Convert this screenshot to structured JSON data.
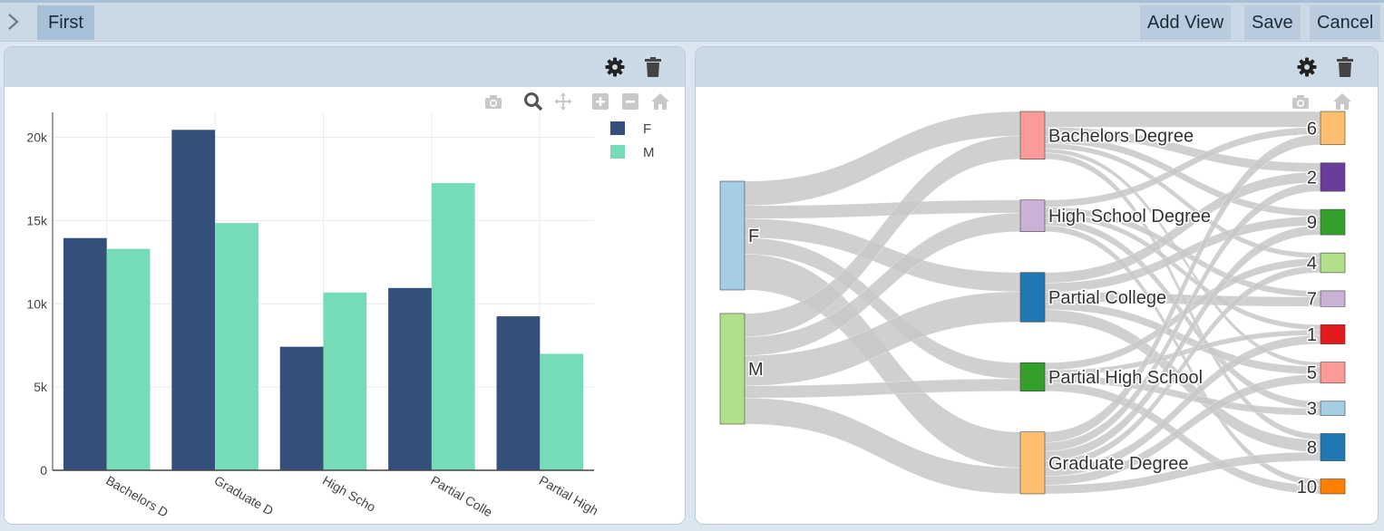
{
  "toolbar": {
    "tab_first": "First",
    "add_view": "Add View",
    "save": "Save",
    "cancel": "Cancel",
    "expand_icon": "chevron-right-icon"
  },
  "panels": {
    "icons": [
      "gear-icon",
      "trash-icon"
    ],
    "modebar_left": [
      "camera-icon",
      "zoom-icon",
      "pan-icon",
      "zoom-in-icon",
      "zoom-out-icon",
      "home-icon"
    ],
    "modebar_right": [
      "camera-icon",
      "home-icon"
    ]
  },
  "colors": {
    "F": "#34507a",
    "M": "#76dcb7",
    "link": "#c8c8c8"
  },
  "chart_data": [
    {
      "type": "bar",
      "categories": [
        "Bachelors Degree",
        "Graduate Degree",
        "High School Degree",
        "Partial College",
        "Partial High School"
      ],
      "category_ticks": [
        "Bachelors D",
        "Graduate D",
        "High Scho",
        "Partial Colle",
        "Partial High"
      ],
      "series": [
        {
          "name": "F",
          "values": [
            13950,
            20450,
            7420,
            10950,
            9250
          ]
        },
        {
          "name": "M",
          "values": [
            13300,
            14850,
            10680,
            17250,
            7000
          ]
        }
      ],
      "ylim": [
        0,
        21500
      ],
      "yticks": [
        0,
        5000,
        10000,
        15000,
        20000
      ],
      "ytick_labels": [
        "0",
        "5k",
        "10k",
        "15k",
        "20k"
      ],
      "legend": "top-right",
      "grid": true
    },
    {
      "type": "sankey",
      "nodes": [
        {
          "label": "F",
          "color": "#a6cee3",
          "column": 0
        },
        {
          "label": "M",
          "color": "#b2df8a",
          "column": 0
        },
        {
          "label": "Bachelors Degree",
          "color": "#fb9a99",
          "column": 1
        },
        {
          "label": "High School Degree",
          "color": "#cab2d6",
          "column": 1
        },
        {
          "label": "Partial College",
          "color": "#1f78b4",
          "column": 1
        },
        {
          "label": "Partial High School",
          "color": "#33a02c",
          "column": 1
        },
        {
          "label": "Graduate Degree",
          "color": "#fdbf6f",
          "column": 1
        },
        {
          "label": "6",
          "color": "#fdbf6f",
          "column": 2
        },
        {
          "label": "2",
          "color": "#6a3d9a",
          "column": 2
        },
        {
          "label": "9",
          "color": "#33a02c",
          "column": 2
        },
        {
          "label": "4",
          "color": "#b2df8a",
          "column": 2
        },
        {
          "label": "7",
          "color": "#cab2d6",
          "column": 2
        },
        {
          "label": "1",
          "color": "#e31a1c",
          "column": 2
        },
        {
          "label": "5",
          "color": "#fb9a99",
          "column": 2
        },
        {
          "label": "3",
          "color": "#a6cee3",
          "column": 2
        },
        {
          "label": "8",
          "color": "#1f78b4",
          "column": 2
        },
        {
          "label": "10",
          "color": "#ff7f00",
          "column": 2
        }
      ],
      "links": [
        {
          "source": 0,
          "target": 2,
          "value": 13950
        },
        {
          "source": 0,
          "target": 3,
          "value": 7420
        },
        {
          "source": 0,
          "target": 4,
          "value": 10950
        },
        {
          "source": 0,
          "target": 5,
          "value": 9250
        },
        {
          "source": 0,
          "target": 6,
          "value": 20450
        },
        {
          "source": 1,
          "target": 2,
          "value": 13300
        },
        {
          "source": 1,
          "target": 3,
          "value": 10680
        },
        {
          "source": 1,
          "target": 4,
          "value": 17250
        },
        {
          "source": 1,
          "target": 5,
          "value": 7000
        },
        {
          "source": 1,
          "target": 6,
          "value": 14850
        },
        {
          "source": 2,
          "target": 7,
          "value": 9000
        },
        {
          "source": 2,
          "target": 8,
          "value": 5200
        },
        {
          "source": 2,
          "target": 9,
          "value": 4000
        },
        {
          "source": 2,
          "target": 10,
          "value": 3000
        },
        {
          "source": 2,
          "target": 13,
          "value": 2500
        },
        {
          "source": 2,
          "target": 15,
          "value": 3550
        },
        {
          "source": 3,
          "target": 7,
          "value": 4000
        },
        {
          "source": 3,
          "target": 11,
          "value": 3500
        },
        {
          "source": 3,
          "target": 12,
          "value": 3000
        },
        {
          "source": 3,
          "target": 14,
          "value": 4100
        },
        {
          "source": 3,
          "target": 16,
          "value": 3500
        },
        {
          "source": 4,
          "target": 8,
          "value": 6000
        },
        {
          "source": 4,
          "target": 9,
          "value": 5200
        },
        {
          "source": 4,
          "target": 11,
          "value": 5500
        },
        {
          "source": 4,
          "target": 13,
          "value": 4500
        },
        {
          "source": 4,
          "target": 15,
          "value": 7000
        },
        {
          "source": 5,
          "target": 10,
          "value": 4250
        },
        {
          "source": 5,
          "target": 12,
          "value": 3000
        },
        {
          "source": 5,
          "target": 14,
          "value": 4000
        },
        {
          "source": 5,
          "target": 16,
          "value": 5000
        },
        {
          "source": 6,
          "target": 7,
          "value": 6000
        },
        {
          "source": 6,
          "target": 8,
          "value": 5000
        },
        {
          "source": 6,
          "target": 9,
          "value": 5300
        },
        {
          "source": 6,
          "target": 10,
          "value": 4000
        },
        {
          "source": 6,
          "target": 12,
          "value": 5000
        },
        {
          "source": 6,
          "target": 15,
          "value": 5000
        },
        {
          "source": 6,
          "target": 13,
          "value": 5000
        }
      ]
    }
  ]
}
